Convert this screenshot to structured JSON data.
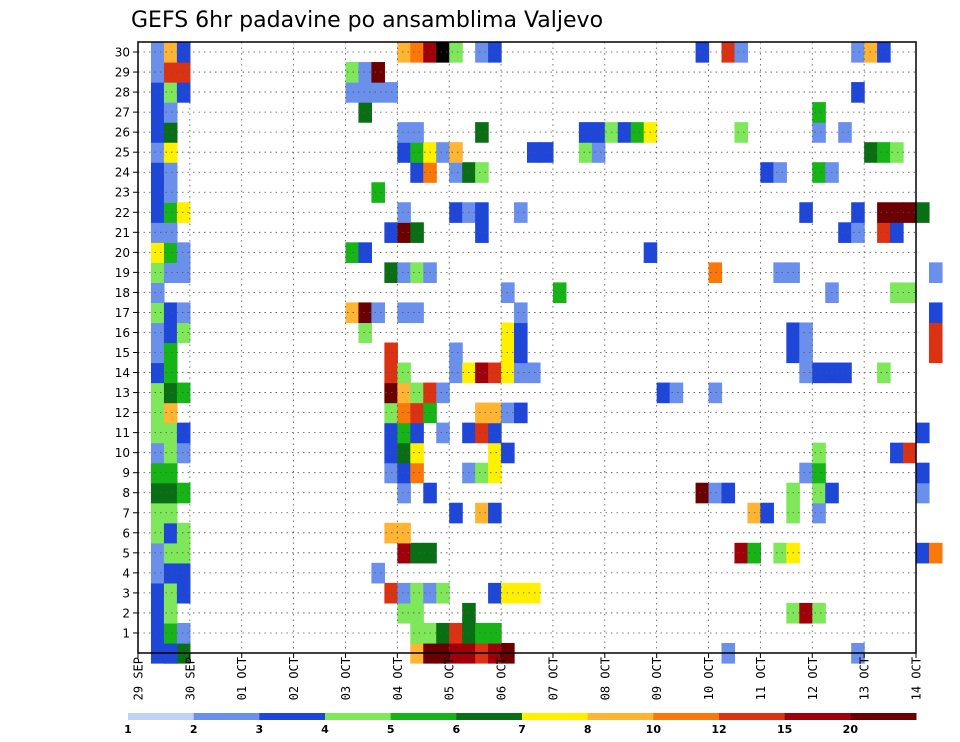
{
  "chart_data": {
    "type": "heatmap",
    "title": "GEFS 6hr padavine po ansamblima Valjevo",
    "xlabel": "",
    "ylabel": "",
    "members": [
      1,
      2,
      3,
      4,
      5,
      6,
      7,
      8,
      9,
      10,
      11,
      12,
      13,
      14,
      15,
      16,
      17,
      18,
      19,
      20,
      21,
      22,
      23,
      24,
      25,
      26,
      27,
      28,
      29,
      30
    ],
    "x_ticks": [
      "29 SEP",
      "30 SEP",
      "01 OCT",
      "02 OCT",
      "03 OCT",
      "04 OCT",
      "05 OCT",
      "06 OCT",
      "07 OCT",
      "08 OCT",
      "09 OCT",
      "10 OCT",
      "11 OCT",
      "12 OCT",
      "13 OCT",
      "14 OCT"
    ],
    "steps_per_day": 4,
    "grid": true,
    "legend_position": "bottom",
    "levels": [
      1,
      2,
      3,
      4,
      5,
      6,
      7,
      8,
      10,
      12,
      15,
      20
    ],
    "colors": [
      "#c0d2f8",
      "#6a90ec",
      "#1e46d8",
      "#7ee85a",
      "#16b416",
      "#0a6e14",
      "#fff000",
      "#ffb432",
      "#fa780a",
      "#dc3214",
      "#a0000a",
      "#6a0000"
    ],
    "cells": [
      [
        0,
        1,
        2
      ],
      [
        0,
        2,
        5
      ],
      [
        0,
        3,
        5
      ],
      [
        0,
        2,
        2
      ],
      [
        0,
        21,
        7
      ],
      [
        0,
        22,
        11
      ],
      [
        0,
        23,
        11
      ],
      [
        0,
        24,
        10
      ],
      [
        0,
        25,
        10
      ],
      [
        0,
        26,
        9
      ],
      [
        0,
        27,
        10
      ],
      [
        0,
        28,
        11
      ],
      [
        0,
        45,
        1
      ],
      [
        0,
        55,
        1
      ],
      [
        1,
        1,
        2
      ],
      [
        1,
        2,
        4
      ],
      [
        1,
        3,
        1
      ],
      [
        1,
        21,
        3
      ],
      [
        1,
        22,
        3
      ],
      [
        1,
        23,
        5
      ],
      [
        1,
        24,
        9
      ],
      [
        1,
        25,
        5
      ],
      [
        1,
        26,
        4
      ],
      [
        1,
        27,
        4
      ],
      [
        2,
        1,
        2
      ],
      [
        2,
        2,
        3
      ],
      [
        2,
        20,
        3
      ],
      [
        2,
        21,
        3
      ],
      [
        2,
        25,
        5
      ],
      [
        2,
        50,
        3
      ],
      [
        2,
        51,
        10
      ],
      [
        2,
        52,
        3
      ],
      [
        3,
        1,
        2
      ],
      [
        3,
        2,
        3
      ],
      [
        3,
        3,
        2
      ],
      [
        3,
        19,
        9
      ],
      [
        3,
        20,
        1
      ],
      [
        3,
        21,
        3
      ],
      [
        3,
        22,
        1
      ],
      [
        3,
        23,
        3
      ],
      [
        3,
        27,
        2
      ],
      [
        3,
        28,
        6
      ],
      [
        3,
        29,
        6
      ],
      [
        3,
        30,
        6
      ],
      [
        4,
        1,
        1
      ],
      [
        4,
        2,
        2
      ],
      [
        4,
        3,
        2
      ],
      [
        4,
        18,
        1
      ],
      [
        5,
        1,
        1
      ],
      [
        5,
        2,
        3
      ],
      [
        5,
        3,
        3
      ],
      [
        5,
        20,
        10
      ],
      [
        5,
        21,
        5
      ],
      [
        5,
        22,
        5
      ],
      [
        5,
        46,
        10
      ],
      [
        5,
        47,
        4
      ],
      [
        5,
        49,
        3
      ],
      [
        5,
        50,
        6
      ],
      [
        5,
        60,
        2
      ],
      [
        5,
        61,
        8
      ],
      [
        6,
        1,
        3
      ],
      [
        6,
        2,
        2
      ],
      [
        6,
        3,
        3
      ],
      [
        6,
        19,
        7
      ],
      [
        6,
        20,
        7
      ],
      [
        7,
        1,
        3
      ],
      [
        7,
        2,
        3
      ],
      [
        7,
        24,
        2
      ],
      [
        7,
        26,
        7
      ],
      [
        7,
        27,
        2
      ],
      [
        7,
        47,
        7
      ],
      [
        7,
        48,
        2
      ],
      [
        7,
        50,
        3
      ],
      [
        7,
        52,
        1
      ],
      [
        8,
        1,
        5
      ],
      [
        8,
        2,
        5
      ],
      [
        8,
        3,
        4
      ],
      [
        8,
        20,
        1
      ],
      [
        8,
        22,
        2
      ],
      [
        8,
        43,
        11
      ],
      [
        8,
        44,
        1
      ],
      [
        8,
        45,
        2
      ],
      [
        8,
        50,
        3
      ],
      [
        8,
        52,
        3
      ],
      [
        8,
        53,
        2
      ],
      [
        8,
        60,
        1
      ],
      [
        9,
        1,
        4
      ],
      [
        9,
        2,
        4
      ],
      [
        9,
        19,
        1
      ],
      [
        9,
        20,
        2
      ],
      [
        9,
        21,
        8
      ],
      [
        9,
        25,
        1
      ],
      [
        9,
        26,
        3
      ],
      [
        9,
        27,
        6
      ],
      [
        9,
        51,
        1
      ],
      [
        9,
        52,
        4
      ],
      [
        9,
        60,
        2
      ],
      [
        10,
        1,
        1
      ],
      [
        10,
        2,
        3
      ],
      [
        10,
        3,
        1
      ],
      [
        10,
        19,
        2
      ],
      [
        10,
        20,
        5
      ],
      [
        10,
        21,
        6
      ],
      [
        10,
        27,
        6
      ],
      [
        10,
        28,
        2
      ],
      [
        10,
        52,
        3
      ],
      [
        10,
        58,
        2
      ],
      [
        10,
        59,
        9
      ],
      [
        11,
        1,
        3
      ],
      [
        11,
        2,
        3
      ],
      [
        11,
        3,
        2
      ],
      [
        11,
        19,
        2
      ],
      [
        11,
        20,
        4
      ],
      [
        11,
        21,
        2
      ],
      [
        11,
        23,
        1
      ],
      [
        11,
        25,
        2
      ],
      [
        11,
        26,
        9
      ],
      [
        11,
        27,
        2
      ],
      [
        11,
        60,
        2
      ],
      [
        12,
        1,
        3
      ],
      [
        12,
        2,
        7
      ],
      [
        12,
        19,
        3
      ],
      [
        12,
        20,
        8
      ],
      [
        12,
        21,
        9
      ],
      [
        12,
        22,
        4
      ],
      [
        12,
        26,
        7
      ],
      [
        12,
        27,
        7
      ],
      [
        12,
        28,
        1
      ],
      [
        12,
        29,
        2
      ],
      [
        13,
        1,
        3
      ],
      [
        13,
        2,
        5
      ],
      [
        13,
        3,
        4
      ],
      [
        13,
        19,
        11
      ],
      [
        13,
        20,
        7
      ],
      [
        13,
        21,
        3
      ],
      [
        13,
        22,
        9
      ],
      [
        13,
        23,
        1
      ],
      [
        13,
        40,
        2
      ],
      [
        13,
        41,
        1
      ],
      [
        13,
        44,
        1
      ],
      [
        14,
        1,
        2
      ],
      [
        14,
        2,
        4
      ],
      [
        14,
        19,
        9
      ],
      [
        14,
        20,
        3
      ],
      [
        14,
        24,
        1
      ],
      [
        14,
        25,
        6
      ],
      [
        14,
        26,
        10
      ],
      [
        14,
        27,
        9
      ],
      [
        14,
        28,
        6
      ],
      [
        14,
        29,
        1
      ],
      [
        14,
        30,
        1
      ],
      [
        14,
        51,
        1
      ],
      [
        14,
        52,
        2
      ],
      [
        14,
        53,
        2
      ],
      [
        14,
        54,
        2
      ],
      [
        14,
        57,
        3
      ],
      [
        15,
        1,
        1
      ],
      [
        15,
        2,
        4
      ],
      [
        15,
        19,
        9
      ],
      [
        15,
        24,
        1
      ],
      [
        15,
        28,
        6
      ],
      [
        15,
        29,
        2
      ],
      [
        15,
        50,
        2
      ],
      [
        15,
        51,
        1
      ],
      [
        15,
        61,
        9
      ],
      [
        16,
        1,
        1
      ],
      [
        16,
        2,
        2
      ],
      [
        16,
        3,
        3
      ],
      [
        16,
        17,
        3
      ],
      [
        16,
        28,
        6
      ],
      [
        16,
        29,
        2
      ],
      [
        16,
        50,
        2
      ],
      [
        16,
        51,
        1
      ],
      [
        16,
        61,
        9
      ],
      [
        17,
        1,
        3
      ],
      [
        17,
        2,
        2
      ],
      [
        17,
        3,
        1
      ],
      [
        17,
        16,
        7
      ],
      [
        17,
        17,
        11
      ],
      [
        17,
        18,
        1
      ],
      [
        17,
        20,
        1
      ],
      [
        17,
        21,
        1
      ],
      [
        17,
        29,
        1
      ],
      [
        17,
        61,
        2
      ],
      [
        18,
        1,
        1
      ],
      [
        18,
        28,
        1
      ],
      [
        18,
        32,
        4
      ],
      [
        18,
        53,
        1
      ],
      [
        18,
        58,
        3
      ],
      [
        18,
        59,
        3
      ],
      [
        19,
        1,
        3
      ],
      [
        19,
        2,
        1
      ],
      [
        19,
        3,
        1
      ],
      [
        19,
        19,
        5
      ],
      [
        19,
        20,
        1
      ],
      [
        19,
        21,
        3
      ],
      [
        19,
        22,
        1
      ],
      [
        19,
        44,
        8
      ],
      [
        19,
        49,
        1
      ],
      [
        19,
        50,
        1
      ],
      [
        19,
        61,
        1
      ],
      [
        20,
        1,
        6
      ],
      [
        20,
        2,
        4
      ],
      [
        20,
        3,
        1
      ],
      [
        20,
        16,
        4
      ],
      [
        20,
        17,
        2
      ],
      [
        20,
        39,
        2
      ],
      [
        21,
        1,
        1
      ],
      [
        21,
        2,
        1
      ],
      [
        21,
        19,
        2
      ],
      [
        21,
        20,
        11
      ],
      [
        21,
        21,
        5
      ],
      [
        21,
        26,
        2
      ],
      [
        21,
        54,
        2
      ],
      [
        21,
        55,
        1
      ],
      [
        21,
        57,
        9
      ],
      [
        21,
        58,
        2
      ],
      [
        22,
        1,
        2
      ],
      [
        22,
        2,
        4
      ],
      [
        22,
        3,
        6
      ],
      [
        22,
        20,
        1
      ],
      [
        22,
        24,
        2
      ],
      [
        22,
        25,
        1
      ],
      [
        22,
        26,
        2
      ],
      [
        22,
        29,
        1
      ],
      [
        22,
        51,
        2
      ],
      [
        22,
        55,
        2
      ],
      [
        22,
        57,
        11
      ],
      [
        22,
        58,
        11
      ],
      [
        22,
        59,
        11
      ],
      [
        22,
        60,
        5
      ],
      [
        23,
        1,
        2
      ],
      [
        23,
        2,
        1
      ],
      [
        23,
        18,
        4
      ],
      [
        24,
        1,
        2
      ],
      [
        24,
        2,
        1
      ],
      [
        24,
        21,
        2
      ],
      [
        24,
        22,
        8
      ],
      [
        24,
        24,
        1
      ],
      [
        24,
        25,
        5
      ],
      [
        24,
        26,
        3
      ],
      [
        24,
        48,
        2
      ],
      [
        24,
        49,
        1
      ],
      [
        24,
        52,
        4
      ],
      [
        24,
        53,
        1
      ],
      [
        25,
        1,
        1
      ],
      [
        25,
        2,
        6
      ],
      [
        25,
        20,
        2
      ],
      [
        25,
        21,
        4
      ],
      [
        25,
        22,
        6
      ],
      [
        25,
        23,
        1
      ],
      [
        25,
        24,
        7
      ],
      [
        25,
        30,
        2
      ],
      [
        25,
        31,
        2
      ],
      [
        25,
        34,
        3
      ],
      [
        25,
        35,
        1
      ],
      [
        25,
        56,
        5
      ],
      [
        25,
        57,
        4
      ],
      [
        25,
        58,
        3
      ],
      [
        26,
        1,
        2
      ],
      [
        26,
        2,
        5
      ],
      [
        26,
        20,
        1
      ],
      [
        26,
        21,
        1
      ],
      [
        26,
        26,
        5
      ],
      [
        26,
        34,
        2
      ],
      [
        26,
        35,
        2
      ],
      [
        26,
        36,
        3
      ],
      [
        26,
        37,
        2
      ],
      [
        26,
        38,
        4
      ],
      [
        26,
        39,
        6
      ],
      [
        26,
        46,
        3
      ],
      [
        26,
        52,
        1
      ],
      [
        26,
        54,
        1
      ],
      [
        27,
        1,
        2
      ],
      [
        27,
        2,
        1
      ],
      [
        27,
        17,
        5
      ],
      [
        27,
        52,
        4
      ],
      [
        28,
        1,
        2
      ],
      [
        28,
        2,
        3
      ],
      [
        28,
        3,
        2
      ],
      [
        28,
        16,
        1
      ],
      [
        28,
        17,
        1
      ],
      [
        28,
        18,
        1
      ],
      [
        28,
        19,
        1
      ],
      [
        28,
        55,
        2
      ],
      [
        29,
        1,
        1
      ],
      [
        29,
        2,
        9
      ],
      [
        29,
        3,
        9
      ],
      [
        29,
        16,
        3
      ],
      [
        29,
        17,
        1
      ],
      [
        29,
        18,
        11
      ],
      [
        30,
        1,
        1
      ],
      [
        30,
        2,
        7
      ],
      [
        30,
        3,
        2
      ],
      [
        30,
        20,
        7
      ],
      [
        30,
        21,
        8
      ],
      [
        30,
        22,
        10
      ],
      [
        30,
        23,
        12
      ],
      [
        30,
        24,
        3
      ],
      [
        30,
        26,
        1
      ],
      [
        30,
        27,
        2
      ],
      [
        30,
        43,
        2
      ],
      [
        30,
        45,
        9
      ],
      [
        30,
        46,
        1
      ],
      [
        30,
        55,
        1
      ],
      [
        30,
        56,
        7
      ],
      [
        30,
        57,
        2
      ]
    ]
  }
}
